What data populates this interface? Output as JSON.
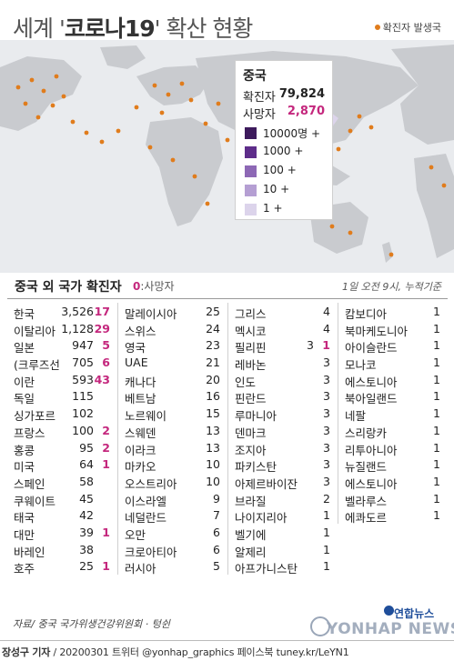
{
  "header": {
    "title_pre": "세계 '",
    "title_bold": "코로나19",
    "title_post": "' 확산 현황",
    "legend_label": "확진자 발생국"
  },
  "china_box": {
    "title": "중국",
    "confirmed_label": "확진자",
    "confirmed_value": "79,824",
    "deaths_label": "사망자",
    "deaths_value": "2,870",
    "scale": [
      {
        "label": "10000명 +",
        "color": "#3d1a5c"
      },
      {
        "label": "1000 +",
        "color": "#5e2d8a"
      },
      {
        "label": "100 +",
        "color": "#8d68b5"
      },
      {
        "label": "10 +",
        "color": "#b59fd3"
      },
      {
        "label": "1 +",
        "color": "#dcd4eb"
      }
    ]
  },
  "table_header": {
    "title": "중국 외 국가 확진자",
    "note_zero": "0",
    "note_text": ":사망자",
    "as_of": "1일 오전 9시, 누적기준"
  },
  "chart_data": {
    "type": "table",
    "columns": [
      "country",
      "confirmed",
      "deaths"
    ],
    "rows": [
      [
        "한국",
        3526,
        17
      ],
      [
        "이탈리아",
        1128,
        29
      ],
      [
        "일본",
        947,
        5
      ],
      [
        "(크루즈선",
        705,
        6
      ],
      [
        "이란",
        593,
        43
      ],
      [
        "독일",
        115,
        null
      ],
      [
        "싱가포르",
        102,
        null
      ],
      [
        "프랑스",
        100,
        2
      ],
      [
        "홍콩",
        95,
        2
      ],
      [
        "미국",
        64,
        1
      ],
      [
        "스페인",
        58,
        null
      ],
      [
        "쿠웨이트",
        45,
        null
      ],
      [
        "태국",
        42,
        null
      ],
      [
        "대만",
        39,
        1
      ],
      [
        "바레인",
        38,
        null
      ],
      [
        "호주",
        25,
        1
      ],
      [
        "말레이시아",
        25,
        null
      ],
      [
        "스위스",
        24,
        null
      ],
      [
        "영국",
        23,
        null
      ],
      [
        "UAE",
        21,
        null
      ],
      [
        "캐나다",
        20,
        null
      ],
      [
        "베트남",
        16,
        null
      ],
      [
        "노르웨이",
        15,
        null
      ],
      [
        "스웨덴",
        13,
        null
      ],
      [
        "이라크",
        13,
        null
      ],
      [
        "마카오",
        10,
        null
      ],
      [
        "오스트리아",
        10,
        null
      ],
      [
        "이스라엘",
        9,
        null
      ],
      [
        "네덜란드",
        7,
        null
      ],
      [
        "오만",
        6,
        null
      ],
      [
        "크로아티아",
        6,
        null
      ],
      [
        "러시아",
        5,
        null
      ],
      [
        "그리스",
        4,
        null
      ],
      [
        "멕시코",
        4,
        null
      ],
      [
        "필리핀",
        3,
        1
      ],
      [
        "레바논",
        3,
        null
      ],
      [
        "인도",
        3,
        null
      ],
      [
        "핀란드",
        3,
        null
      ],
      [
        "루마니아",
        3,
        null
      ],
      [
        "덴마크",
        3,
        null
      ],
      [
        "조지아",
        3,
        null
      ],
      [
        "파키스탄",
        3,
        null
      ],
      [
        "아제르바이잔",
        3,
        null
      ],
      [
        "브라질",
        2,
        null
      ],
      [
        "나이지리아",
        1,
        null
      ],
      [
        "벨기에",
        1,
        null
      ],
      [
        "알제리",
        1,
        null
      ],
      [
        "아프가니스탄",
        1,
        null
      ],
      [
        "캄보디아",
        1,
        null
      ],
      [
        "북마케도니아",
        1,
        null
      ],
      [
        "아이슬란드",
        1,
        null
      ],
      [
        "모나코",
        1,
        null
      ],
      [
        "에스토니아",
        1,
        null
      ],
      [
        "북아일랜드",
        1,
        null
      ],
      [
        "네팔",
        1,
        null
      ],
      [
        "스리랑카",
        1,
        null
      ],
      [
        "리투아니아",
        1,
        null
      ],
      [
        "뉴질랜드",
        1,
        null
      ],
      [
        "에스토니아",
        1,
        null
      ],
      [
        "벨라루스",
        1,
        null
      ],
      [
        "에콰도르",
        1,
        null
      ]
    ]
  },
  "source": "자료/ 중국 국가위생건강위원회 · 텅쉰",
  "credit": {
    "author": "장성구 기자",
    "rest": " / 20200301  트위터 @yonhap_graphics  페이스북 tuney.kr/LeYN1"
  },
  "logo": {
    "ko": "연합뉴스",
    "en": "YONHAP NEWS"
  },
  "colors": {
    "dot": "#e07c1c",
    "land": "#c9cbcf",
    "water": "#e9ebee",
    "death": "#c4277d"
  }
}
